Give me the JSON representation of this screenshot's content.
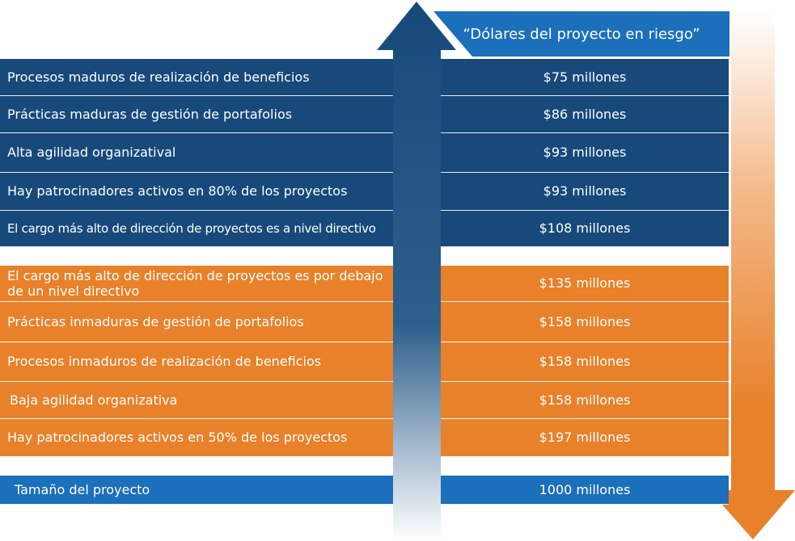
{
  "header": {
    "title": "“Dólares del proyecto en riesgo”"
  },
  "rows": [
    {
      "label": "Procesos maduros de realización de beneficios",
      "value": "$75 millones"
    },
    {
      "label": "Prácticas maduras de gestión de portafolios",
      "value": "$86 millones"
    },
    {
      "label": "Alta agilidad organizatival",
      "value": "$93 millones"
    },
    {
      "label": "Hay patrocinadores activos en 80% de los proyectos",
      "value": "$93 millones"
    },
    {
      "label": "El cargo más alto de dirección de proyectos es a nivel directivo",
      "value": "$108 millones"
    },
    {
      "label": "El cargo más alto de dirección de proyectos es por debajo de un nivel directivo",
      "value": "$135 millones"
    },
    {
      "label": "Prácticas inmaduras de gestión de portafolios",
      "value": "$158 millones"
    },
    {
      "label": "Procesos inmaduros de realización de beneficios",
      "value": "$158 millones"
    },
    {
      "label": "Baja agilidad organizativa",
      "value": "$158 millones"
    },
    {
      "label": "Hay patrocinadores activos en 50% de los proyectos",
      "value": "$197 millones"
    }
  ],
  "size_row": {
    "label": "Tamaño del proyecto",
    "value": "1000 millones"
  },
  "colors": {
    "mature": "#17497a",
    "immature": "#e8812a",
    "size": "#1c6fba",
    "header": "#1c6fba"
  }
}
